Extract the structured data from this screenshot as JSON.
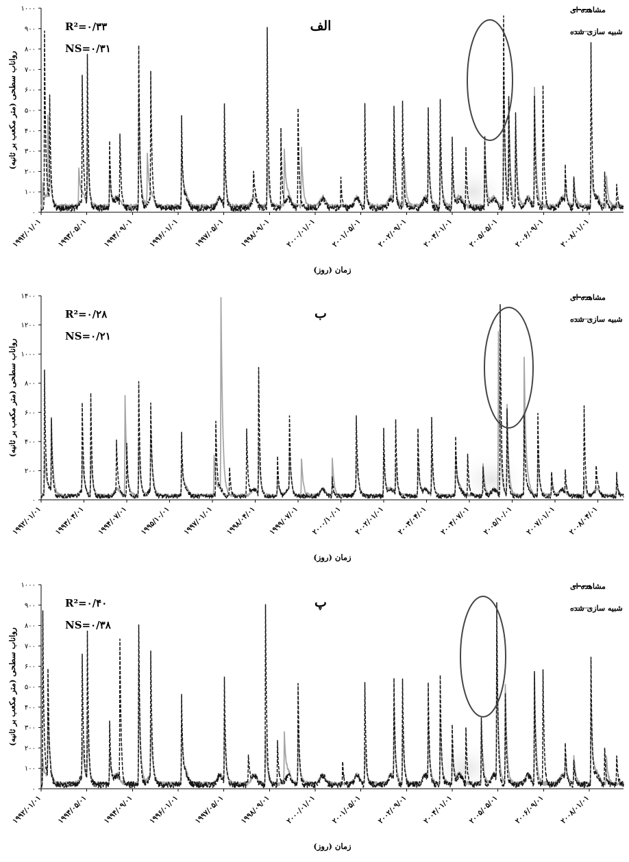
{
  "colors": {
    "observed": "#141414",
    "simulated": "#a6a6a6",
    "axis": "#000000"
  },
  "chart_data": [
    {
      "type": "line",
      "panel_label": "الف",
      "r2_text": "R²=۰/۳۳",
      "ns_text": "NS=۰/۳۱",
      "ylabel": "رواناب سطحی (متر مکعب بر ثانیه)",
      "xlabel": "زمان (روز)",
      "ylim": [
        0,
        1000
      ],
      "yticks": [
        0,
        100,
        200,
        300,
        400,
        500,
        600,
        700,
        800,
        900,
        1000
      ],
      "ytick_labels": [
        "۰",
        "۱۰۰",
        "۲۰۰",
        "۳۰۰",
        "۴۰۰",
        "۵۰۰",
        "۶۰۰",
        "۷۰۰",
        "۸۰۰",
        "۹۰۰",
        "۱۰۰۰"
      ],
      "xlim": [
        1992.0,
        2009.0
      ],
      "xticks": [
        1992.0,
        1993.33,
        1994.67,
        1996.0,
        1997.33,
        1998.67,
        2000.0,
        2001.33,
        2002.67,
        2004.0,
        2005.33,
        2006.67,
        2008.0
      ],
      "xtick_labels": [
        "۱۹۹۲/۰۱/۰۱",
        "۱۹۹۳/۰۵/۰۱",
        "۱۹۹۴/۰۹/۰۱",
        "۱۹۹۶/۰۱/۰۱",
        "۱۹۹۷/۰۵/۰۱",
        "۱۹۹۸/۰۹/۰۱",
        "۲۰۰۰/۰۱/۰۱",
        "۲۰۰۱/۰۵/۰۱",
        "۲۰۰۲/۰۹/۰۱",
        "۲۰۰۴/۰۱/۰۱",
        "۲۰۰۵/۰۵/۰۱",
        "۲۰۰۶/۰۹/۰۱",
        "۲۰۰۸/۰۱/۰۱"
      ],
      "highlight": {
        "x_from": 2004.6,
        "x_to": 2005.6,
        "note_fraction_of_ymax_top": 0.97
      },
      "series": [
        {
          "name": "مشاهده ای",
          "style": "observed",
          "peaks": [
            [
              1992.1,
              890
            ],
            [
              1992.25,
              540
            ],
            [
              1993.2,
              640
            ],
            [
              1993.35,
              760
            ],
            [
              1994.0,
              340
            ],
            [
              1994.3,
              370
            ],
            [
              1994.85,
              840
            ],
            [
              1995.2,
              650
            ],
            [
              1996.1,
              450
            ],
            [
              1997.35,
              530
            ],
            [
              1998.6,
              920
            ],
            [
              1998.2,
              160
            ],
            [
              1999.0,
              400
            ],
            [
              1999.5,
              530
            ],
            [
              2000.75,
              150
            ],
            [
              2001.45,
              530
            ],
            [
              2002.3,
              510
            ],
            [
              2002.55,
              550
            ],
            [
              2003.3,
              490
            ],
            [
              2003.65,
              560
            ],
            [
              2004.0,
              350
            ],
            [
              2004.4,
              300
            ],
            [
              2004.95,
              360
            ],
            [
              2005.5,
              980
            ],
            [
              2005.65,
              560
            ],
            [
              2005.85,
              500
            ],
            [
              2006.4,
              580
            ],
            [
              2006.65,
              640
            ],
            [
              2007.3,
              190
            ],
            [
              2007.55,
              160
            ],
            [
              2008.05,
              840
            ],
            [
              2008.45,
              190
            ],
            [
              2008.8,
              120
            ]
          ],
          "base": 20
        },
        {
          "name": "شبیه سازی شده",
          "style": "simulated",
          "peaks": [
            [
              1992.05,
              120
            ],
            [
              1992.2,
              420
            ],
            [
              1993.1,
              190
            ],
            [
              1993.35,
              310
            ],
            [
              1994.0,
              180
            ],
            [
              1994.85,
              560
            ],
            [
              1995.1,
              260
            ],
            [
              1996.1,
              280
            ],
            [
              1997.35,
              260
            ],
            [
              1998.6,
              230
            ],
            [
              1999.1,
              280
            ],
            [
              1999.6,
              300
            ],
            [
              2001.45,
              150
            ],
            [
              2002.3,
              320
            ],
            [
              2002.6,
              260
            ],
            [
              2003.3,
              300
            ],
            [
              2003.65,
              330
            ],
            [
              2004.0,
              200
            ],
            [
              2004.95,
              350
            ],
            [
              2005.5,
              660
            ],
            [
              2005.65,
              520
            ],
            [
              2005.85,
              400
            ],
            [
              2006.4,
              600
            ],
            [
              2007.3,
              100
            ],
            [
              2007.55,
              150
            ],
            [
              2008.05,
              220
            ],
            [
              2008.5,
              160
            ]
          ],
          "base": 30
        }
      ]
    },
    {
      "type": "line",
      "panel_label": "ب",
      "r2_text": "R²=۰/۲۸",
      "ns_text": "NS=۰/۲۱",
      "ylabel": "رواناب سطحی (متر مکعب بر ثانیه)",
      "xlabel": "زمان (روز)",
      "ylim": [
        0,
        1400
      ],
      "yticks": [
        0,
        200,
        400,
        600,
        800,
        1000,
        1200,
        1400
      ],
      "ytick_labels": [
        "۰",
        "۲۰۰",
        "۴۰۰",
        "۶۰۰",
        "۸۰۰",
        "۱۰۰۰",
        "۱۲۰۰",
        "۱۴۰۰"
      ],
      "xlim": [
        1992.0,
        2009.0
      ],
      "xticks": [
        1992.0,
        1993.25,
        1994.5,
        1995.75,
        1997.0,
        1998.25,
        1999.5,
        2000.75,
        2002.0,
        2003.25,
        2004.5,
        2005.75,
        2007.0,
        2008.25
      ],
      "xtick_labels": [
        "۱۹۹۲/۰۱/۰۱",
        "۱۹۹۳/۰۴/۰۱",
        "۱۹۹۴/۰۷/۰۱",
        "۱۹۹۵/۱۰/۰۱",
        "۱۹۹۷/۰۱/۰۱",
        "۱۹۹۸/۰۴/۰۱",
        "۱۹۹۹/۰۷/۰۱",
        "۲۰۰۰/۱۰/۰۱",
        "۲۰۰۲/۰۱/۰۱",
        "۲۰۰۳/۰۴/۰۱",
        "۲۰۰۴/۰۷/۰۱",
        "۲۰۰۵/۱۰/۰۱",
        "۲۰۰۷/۰۱/۰۱",
        "۲۰۰۸/۰۴/۰۱"
      ],
      "highlight": {
        "x_from": 2005.1,
        "x_to": 2006.2
      },
      "series": [
        {
          "name": "مشاهده ای",
          "style": "observed",
          "peaks": [
            [
              1992.1,
              890
            ],
            [
              1992.3,
              520
            ],
            [
              1993.2,
              620
            ],
            [
              1993.45,
              750
            ],
            [
              1994.2,
              360
            ],
            [
              1994.5,
              380
            ],
            [
              1994.85,
              830
            ],
            [
              1995.2,
              640
            ],
            [
              1996.1,
              440
            ],
            [
              1997.1,
              530
            ],
            [
              1997.5,
              220
            ],
            [
              1998.0,
              500
            ],
            [
              1998.35,
              910
            ],
            [
              1998.9,
              280
            ],
            [
              1999.25,
              520
            ],
            [
              2000.5,
              130
            ],
            [
              2001.2,
              530
            ],
            [
              2002.0,
              480
            ],
            [
              2002.35,
              550
            ],
            [
              2003.0,
              480
            ],
            [
              2003.4,
              560
            ],
            [
              2004.1,
              420
            ],
            [
              2004.45,
              310
            ],
            [
              2004.9,
              200
            ],
            [
              2005.4,
              1390
            ],
            [
              2005.6,
              630
            ],
            [
              2006.1,
              570
            ],
            [
              2006.5,
              590
            ],
            [
              2006.9,
              170
            ],
            [
              2007.3,
              160
            ],
            [
              2007.85,
              640
            ],
            [
              2008.2,
              180
            ],
            [
              2008.8,
              160
            ]
          ],
          "base": 25
        },
        {
          "name": "شبیه سازی شده",
          "style": "simulated",
          "peaks": [
            [
              1992.1,
              280
            ],
            [
              1992.3,
              520
            ],
            [
              1993.2,
              260
            ],
            [
              1993.45,
              320
            ],
            [
              1994.45,
              710
            ],
            [
              1994.85,
              400
            ],
            [
              1995.2,
              420
            ],
            [
              1996.1,
              260
            ],
            [
              1997.05,
              290
            ],
            [
              1997.25,
              1390
            ],
            [
              1998.35,
              380
            ],
            [
              1998.9,
              140
            ],
            [
              1999.25,
              280
            ],
            [
              1999.6,
              270
            ],
            [
              2000.5,
              270
            ],
            [
              2001.2,
              250
            ],
            [
              2002.0,
              300
            ],
            [
              2002.35,
              230
            ],
            [
              2003.0,
              270
            ],
            [
              2003.4,
              300
            ],
            [
              2004.1,
              300
            ],
            [
              2004.9,
              230
            ],
            [
              2005.35,
              1180
            ],
            [
              2005.6,
              640
            ],
            [
              2006.1,
              990
            ],
            [
              2006.5,
              300
            ],
            [
              2006.9,
              150
            ],
            [
              2007.85,
              120
            ],
            [
              2008.8,
              100
            ]
          ],
          "base": 30
        }
      ]
    },
    {
      "type": "line",
      "panel_label": "پ",
      "r2_text": "R²=۰/۴۰",
      "ns_text": "NS=۰/۳۸",
      "ylabel": "رواناب سطحی (متر مکعب بر ثانیه)",
      "xlabel": "زمان (روز)",
      "ylim": [
        0,
        1000
      ],
      "yticks": [
        0,
        100,
        200,
        300,
        400,
        500,
        600,
        700,
        800,
        900,
        1000
      ],
      "ytick_labels": [
        "۰",
        "۱۰۰",
        "۲۰۰",
        "۳۰۰",
        "۴۰۰",
        "۵۰۰",
        "۶۰۰",
        "۷۰۰",
        "۸۰۰",
        "۹۰۰",
        "۱۰۰۰"
      ],
      "xlim": [
        1992.0,
        2009.0
      ],
      "xticks": [
        1992.0,
        1993.33,
        1994.67,
        1996.0,
        1997.33,
        1998.67,
        2000.0,
        2001.33,
        2002.67,
        2004.0,
        2005.33,
        2006.67,
        2008.0
      ],
      "xtick_labels": [
        "۱۹۹۲/۰۱/۰۱",
        "۱۹۹۳/۰۵/۰۱",
        "۱۹۹۴/۰۹/۰۱",
        "۱۹۹۶/۰۱/۰۱",
        "۱۹۹۷/۰۵/۰۱",
        "۱۹۹۸/۰۹/۰۱",
        "۲۰۰۰/۰۱/۰۱",
        "۲۰۰۱/۰۵/۰۱",
        "۲۰۰۲/۰۹/۰۱",
        "۲۰۰۴/۰۱/۰۱",
        "۲۰۰۵/۰۵/۰۱",
        "۲۰۰۶/۰۹/۰۱",
        "۲۰۰۸/۰۱/۰۱"
      ],
      "highlight": {
        "x_from": 2004.4,
        "x_to": 2005.4
      },
      "series": [
        {
          "name": "مشاهده ای",
          "style": "observed",
          "peaks": [
            [
              1992.05,
              890
            ],
            [
              1992.2,
              540
            ],
            [
              1993.2,
              640
            ],
            [
              1993.35,
              760
            ],
            [
              1994.0,
              330
            ],
            [
              1994.3,
              720
            ],
            [
              1994.85,
              830
            ],
            [
              1995.2,
              650
            ],
            [
              1996.1,
              450
            ],
            [
              1997.35,
              530
            ],
            [
              1998.05,
              160
            ],
            [
              1998.55,
              920
            ],
            [
              1998.9,
              220
            ],
            [
              1999.5,
              530
            ],
            [
              2000.8,
              120
            ],
            [
              2001.45,
              520
            ],
            [
              2002.3,
              520
            ],
            [
              2002.55,
              540
            ],
            [
              2003.3,
              490
            ],
            [
              2003.65,
              560
            ],
            [
              2004.0,
              300
            ],
            [
              2004.4,
              290
            ],
            [
              2004.85,
              360
            ],
            [
              2005.3,
              920
            ],
            [
              2005.55,
              470
            ],
            [
              2006.4,
              570
            ],
            [
              2006.65,
              590
            ],
            [
              2007.3,
              190
            ],
            [
              2007.55,
              140
            ],
            [
              2008.05,
              640
            ],
            [
              2008.45,
              190
            ],
            [
              2008.8,
              160
            ]
          ],
          "base": 20
        },
        {
          "name": "شبیه سازی شده",
          "style": "simulated",
          "peaks": [
            [
              1992.05,
              120
            ],
            [
              1992.2,
              320
            ],
            [
              1993.2,
              180
            ],
            [
              1993.35,
              330
            ],
            [
              1994.0,
              170
            ],
            [
              1994.85,
              600
            ],
            [
              1995.2,
              260
            ],
            [
              1996.1,
              290
            ],
            [
              1997.35,
              330
            ],
            [
              1998.55,
              260
            ],
            [
              1999.1,
              250
            ],
            [
              1999.5,
              280
            ],
            [
              2001.45,
              200
            ],
            [
              2002.3,
              360
            ],
            [
              2002.55,
              300
            ],
            [
              2003.3,
              300
            ],
            [
              2003.65,
              330
            ],
            [
              2004.0,
              200
            ],
            [
              2004.85,
              320
            ],
            [
              2005.3,
              730
            ],
            [
              2005.55,
              500
            ],
            [
              2006.4,
              560
            ],
            [
              2007.3,
              130
            ],
            [
              2007.55,
              150
            ],
            [
              2008.05,
              430
            ],
            [
              2008.5,
              140
            ]
          ],
          "base": 25
        }
      ]
    }
  ]
}
